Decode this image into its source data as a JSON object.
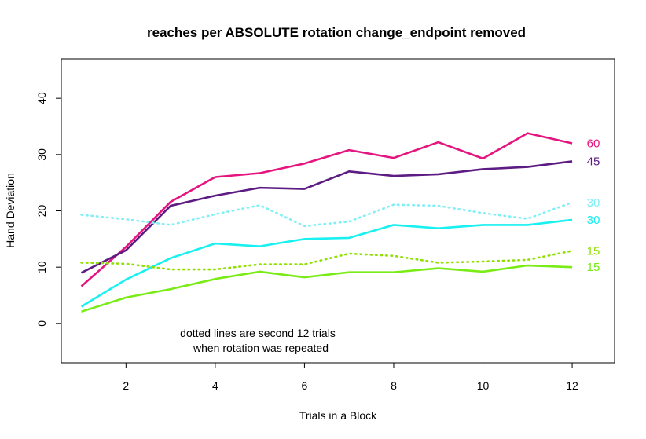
{
  "chart_data": {
    "type": "line",
    "title": "reaches per ABSOLUTE rotation change_endpoint removed",
    "xlabel": "Trials in a Block",
    "ylabel": "Hand Deviation",
    "xlim": [
      0.55,
      12.95
    ],
    "ylim": [
      -7,
      47
    ],
    "xticks": [
      2,
      4,
      6,
      8,
      10,
      12
    ],
    "yticks": [
      0,
      10,
      20,
      30,
      40
    ],
    "x": [
      1,
      2,
      3,
      4,
      5,
      6,
      7,
      8,
      9,
      10,
      11,
      12
    ],
    "annotation": [
      "dotted lines are second 12 trials",
      "when rotation was repeated"
    ],
    "series": [
      {
        "label": "60",
        "color": "#E5157F",
        "style": "solid",
        "values": [
          6.6,
          13.6,
          21.6,
          26.0,
          26.7,
          28.4,
          30.8,
          29.4,
          32.2,
          29.3,
          33.8,
          32.0
        ]
      },
      {
        "label": "45",
        "color": "#5C1C83",
        "style": "solid",
        "values": [
          9.0,
          13.0,
          20.9,
          22.7,
          24.1,
          23.9,
          27.0,
          26.2,
          26.5,
          27.4,
          27.8,
          28.8
        ]
      },
      {
        "label": "30",
        "color": "#7FF0F5",
        "style": "dotted",
        "values": [
          19.3,
          18.5,
          17.5,
          19.4,
          21.0,
          17.3,
          18.1,
          21.1,
          20.9,
          19.6,
          18.6,
          21.5
        ]
      },
      {
        "label": "30",
        "color": "#19F0F0",
        "style": "solid",
        "values": [
          3.0,
          7.8,
          11.6,
          14.2,
          13.7,
          15.0,
          15.2,
          17.5,
          16.9,
          17.5,
          17.5,
          18.4
        ]
      },
      {
        "label": "15",
        "color": "#90E000",
        "style": "dotted",
        "values": [
          10.8,
          10.6,
          9.6,
          9.6,
          10.5,
          10.5,
          12.4,
          12.0,
          10.8,
          11.0,
          11.3,
          12.9
        ]
      },
      {
        "label": "15",
        "color": "#78EC14",
        "style": "solid",
        "values": [
          2.1,
          4.6,
          6.1,
          7.9,
          9.2,
          8.2,
          9.1,
          9.1,
          9.8,
          9.2,
          10.3,
          10.0
        ]
      }
    ]
  }
}
